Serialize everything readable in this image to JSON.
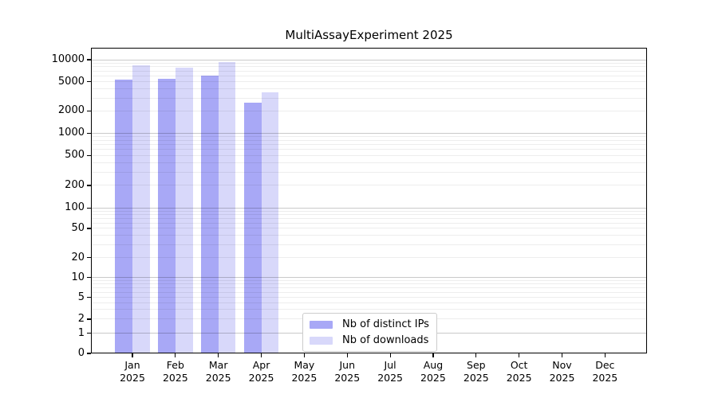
{
  "title": "MultiAssayExperiment 2025",
  "chart_data": {
    "type": "bar",
    "title": "MultiAssayExperiment 2025",
    "xlabel": "",
    "ylabel": "",
    "x_months": [
      "Jan",
      "Feb",
      "Mar",
      "Apr",
      "May",
      "Jun",
      "Jul",
      "Aug",
      "Sep",
      "Oct",
      "Nov",
      "Dec"
    ],
    "x_year": "2025",
    "y_scale": "symlog",
    "y_ticks": [
      0,
      1,
      2,
      5,
      10,
      20,
      50,
      100,
      200,
      500,
      1000,
      2000,
      5000,
      10000
    ],
    "ylim": [
      0,
      12000
    ],
    "grid": "horizontal",
    "legend_position": "lower-center-inside",
    "series": [
      {
        "name": "Nb of distinct IPs",
        "color": "#a8a8f6",
        "values": [
          5400,
          5450,
          6100,
          2600,
          null,
          null,
          null,
          null,
          null,
          null,
          null,
          null
        ]
      },
      {
        "name": "Nb of downloads",
        "color": "#d8d8fa",
        "values": [
          8300,
          7850,
          9350,
          3600,
          null,
          null,
          null,
          null,
          null,
          null,
          null,
          null
        ]
      }
    ]
  }
}
